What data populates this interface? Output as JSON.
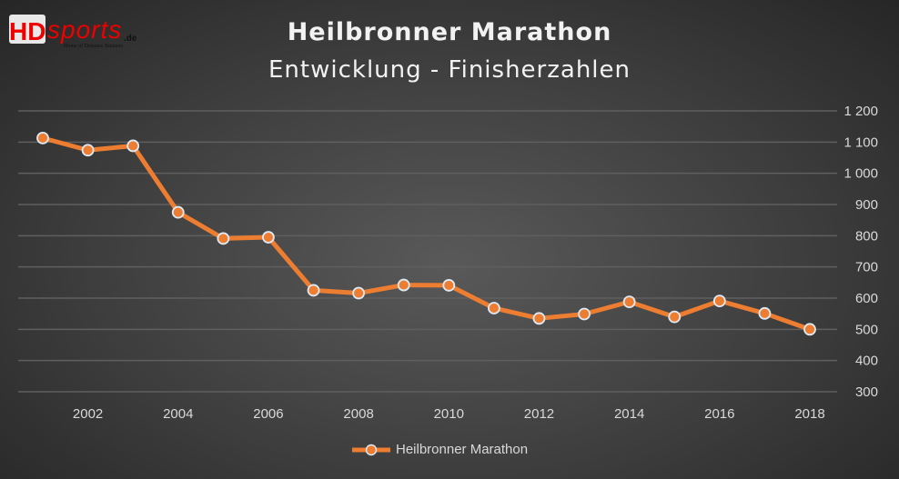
{
  "logo": {
    "text": "HDSPORTS.de",
    "tagline": "Home of Distance Runners"
  },
  "chart_data": {
    "type": "line",
    "title": "Heilbronner Marathon",
    "subtitle": "Entwicklung - Finisherzahlen",
    "x": [
      2001,
      2002,
      2003,
      2004,
      2005,
      2006,
      2007,
      2008,
      2009,
      2010,
      2011,
      2012,
      2013,
      2014,
      2015,
      2016,
      2017,
      2018
    ],
    "series": [
      {
        "name": "Heilbronner Marathon",
        "values": [
          1113,
          1074,
          1088,
          875,
          791,
          795,
          625,
          616,
          642,
          641,
          568,
          535,
          549,
          588,
          540,
          591,
          551,
          500
        ]
      }
    ],
    "xticks": [
      "2002",
      "2004",
      "2006",
      "2008",
      "2010",
      "2012",
      "2014",
      "2016",
      "2018"
    ],
    "yticks": [
      "300",
      "400",
      "500",
      "600",
      "700",
      "800",
      "900",
      "1 000",
      "1 100",
      "1 200"
    ],
    "ylim": [
      300,
      1200
    ],
    "grid": true,
    "yaxis_side": "right",
    "legend": "bottom",
    "colors": {
      "line": "#ed7d31",
      "marker_edge": "#dde9f5",
      "grid": "#5f5f5f"
    }
  }
}
